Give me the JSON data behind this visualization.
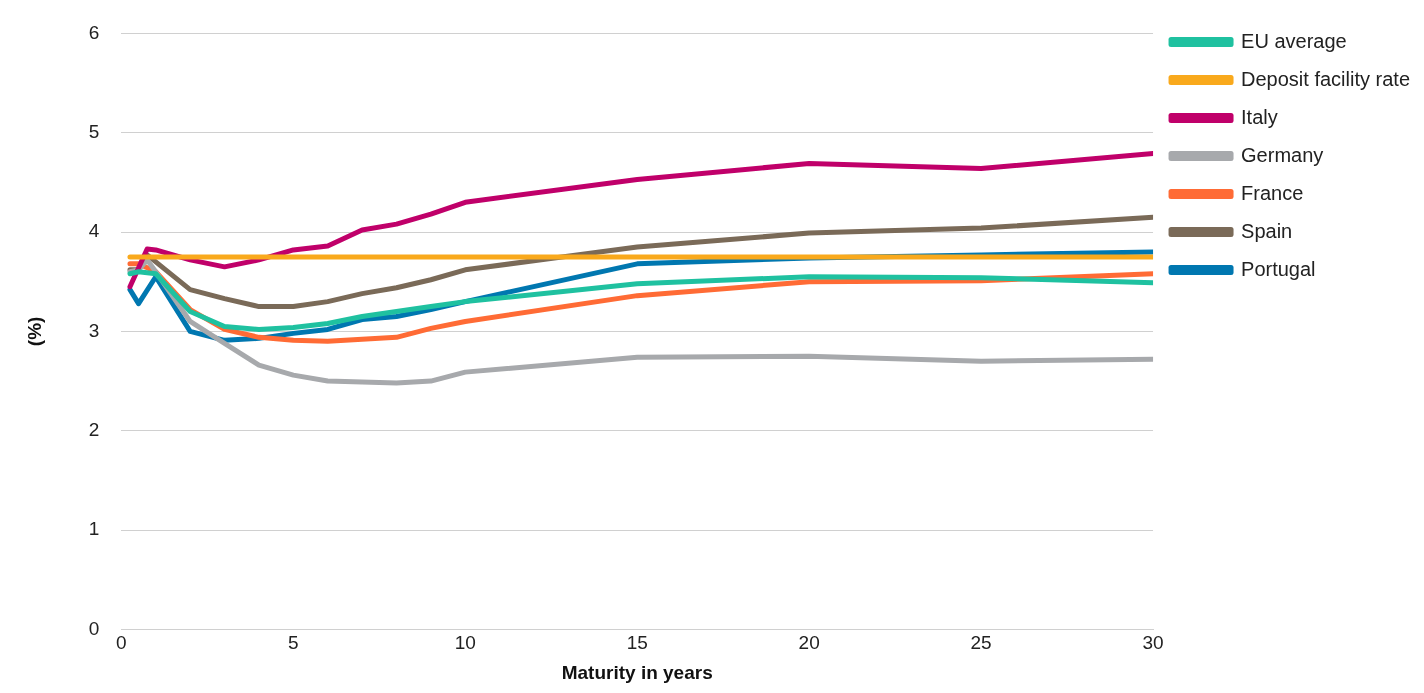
{
  "chart_data": {
    "type": "line",
    "xlabel": "Maturity in years",
    "ylabel": "(%)",
    "xlim": [
      0,
      30
    ],
    "xticks": [
      0,
      5,
      10,
      15,
      20,
      25,
      30
    ],
    "ylim": [
      0,
      6
    ],
    "yticks": [
      0,
      1,
      2,
      3,
      4,
      5,
      6
    ],
    "grid": "y",
    "legend": "top right",
    "marker": "none",
    "line_style": "solid",
    "series": [
      {
        "name": "EU average",
        "color": "#1fc1a0",
        "x": [
          0.25,
          0.5,
          1,
          2,
          3,
          4,
          5,
          6,
          7,
          8,
          9,
          10,
          15,
          20,
          25,
          30
        ],
        "values": [
          3.58,
          3.6,
          3.58,
          3.2,
          3.05,
          3.02,
          3.04,
          3.08,
          3.15,
          3.2,
          3.25,
          3.3,
          3.48,
          3.55,
          3.54,
          3.49
        ]
      },
      {
        "name": "Deposit facility rate",
        "color": "#f9a91c",
        "x": [
          0.25,
          30
        ],
        "values": [
          3.75,
          3.75
        ]
      },
      {
        "name": "Italy",
        "color": "#c0006a",
        "x": [
          0.25,
          0.75,
          1,
          2,
          3,
          4,
          5,
          6,
          7,
          8,
          9,
          10,
          15,
          20,
          25,
          30
        ],
        "values": [
          3.45,
          3.83,
          3.82,
          3.72,
          3.65,
          3.72,
          3.82,
          3.86,
          4.02,
          4.08,
          4.18,
          4.3,
          4.53,
          4.69,
          4.64,
          4.79
        ]
      },
      {
        "name": "Germany",
        "color": "#a7a9ac",
        "x": [
          0.25,
          0.5,
          0.75,
          1,
          2,
          3,
          4,
          5,
          6,
          7,
          8,
          9,
          10,
          15,
          20,
          25,
          30
        ],
        "values": [
          3.6,
          3.62,
          3.72,
          3.6,
          3.1,
          2.88,
          2.66,
          2.56,
          2.5,
          2.49,
          2.48,
          2.5,
          2.59,
          2.74,
          2.75,
          2.7,
          2.72
        ]
      },
      {
        "name": "France",
        "color": "#ff6b35",
        "x": [
          0.25,
          0.5,
          1,
          2,
          3,
          4,
          5,
          6,
          7,
          8,
          9,
          10,
          15,
          20,
          25,
          30
        ],
        "values": [
          3.68,
          3.68,
          3.6,
          3.22,
          3.02,
          2.94,
          2.91,
          2.9,
          2.92,
          2.94,
          3.03,
          3.1,
          3.36,
          3.5,
          3.51,
          3.58
        ]
      },
      {
        "name": "Spain",
        "color": "#7a6a58",
        "x": [
          0.25,
          0.5,
          0.75,
          1,
          2,
          3,
          4,
          5,
          6,
          7,
          8,
          9,
          10,
          15,
          20,
          25,
          30
        ],
        "values": [
          3.62,
          3.62,
          3.77,
          3.7,
          3.42,
          3.33,
          3.25,
          3.25,
          3.3,
          3.38,
          3.44,
          3.52,
          3.62,
          3.85,
          3.99,
          4.04,
          4.15
        ]
      },
      {
        "name": "Portugal",
        "color": "#0077b0",
        "x": [
          0.25,
          0.5,
          1,
          2,
          3,
          4,
          5,
          6,
          7,
          8,
          9,
          10,
          15,
          20,
          25,
          30
        ],
        "values": [
          3.42,
          3.28,
          3.55,
          3.0,
          2.91,
          2.93,
          2.98,
          3.02,
          3.12,
          3.15,
          3.22,
          3.3,
          3.68,
          3.74,
          3.77,
          3.8
        ]
      }
    ]
  }
}
